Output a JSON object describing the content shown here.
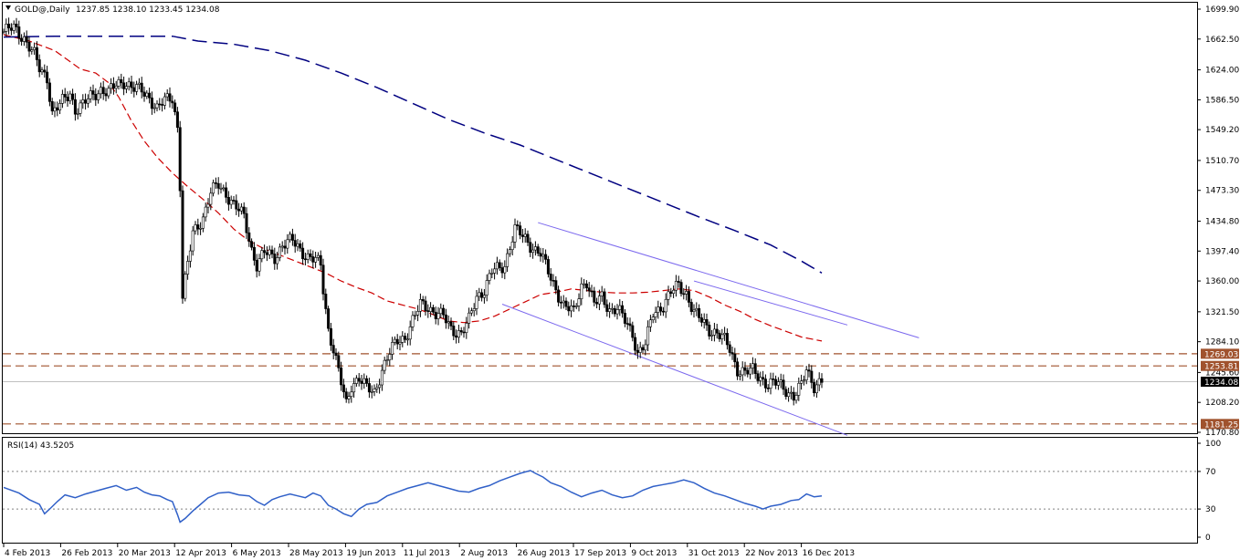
{
  "window": {
    "symbol_header": "GOLD@,Daily",
    "ohlc_header": "1237.85 1238.10 1233.45 1234.08",
    "indicator_header": "RSI(14) 43.5205"
  },
  "colors": {
    "background": "#ffffff",
    "candle": "#000000",
    "ma_short": "#cc0000",
    "ma_long": "#000080",
    "channel": "#7b68ee",
    "level": "#a0522d",
    "rsi": "#3060c8",
    "current_price_tag": "#000000"
  },
  "chart_data": [
    {
      "type": "candlestick",
      "symbol": "GOLD@",
      "timeframe": "Daily",
      "last_ohlc": {
        "open": 1237.85,
        "high": 1238.1,
        "low": 1233.45,
        "close": 1234.08
      },
      "ylim": [
        1170.8,
        1699.9
      ],
      "y_ticks": [
        "1699.90",
        "1662.50",
        "1624.00",
        "1586.50",
        "1549.20",
        "1510.70",
        "1473.30",
        "1434.80",
        "1397.40",
        "1360.00",
        "1321.50",
        "1284.10",
        "1245.60",
        "1208.20",
        "1170.80"
      ],
      "x_ticks": [
        "4 Feb 2013",
        "26 Feb 2013",
        "20 Mar 2013",
        "12 Apr 2013",
        "6 May 2013",
        "28 May 2013",
        "19 Jun 2013",
        "11 Jul 2013",
        "2 Aug 2013",
        "26 Aug 2013",
        "17 Sep 2013",
        "9 Oct 2013",
        "31 Oct 2013",
        "22 Nov 2013",
        "16 Dec 2013"
      ],
      "close_path": [
        [
          0,
          1672
        ],
        [
          4,
          1676
        ],
        [
          8,
          1664
        ],
        [
          12,
          1642
        ],
        [
          14,
          1625
        ],
        [
          17,
          1615
        ],
        [
          19,
          1570
        ],
        [
          22,
          1580
        ],
        [
          26,
          1595
        ],
        [
          28,
          1575
        ],
        [
          31,
          1580
        ],
        [
          34,
          1590
        ],
        [
          38,
          1600
        ],
        [
          41,
          1595
        ],
        [
          44,
          1605
        ],
        [
          47,
          1610
        ],
        [
          51,
          1600
        ],
        [
          54,
          1598
        ],
        [
          57,
          1590
        ],
        [
          60,
          1575
        ],
        [
          63,
          1585
        ],
        [
          66,
          1590
        ],
        [
          68,
          1552
        ],
        [
          69,
          1480
        ],
        [
          70,
          1340
        ],
        [
          72,
          1380
        ],
        [
          74,
          1420
        ],
        [
          78,
          1440
        ],
        [
          81,
          1470
        ],
        [
          84,
          1480
        ],
        [
          87,
          1470
        ],
        [
          90,
          1455
        ],
        [
          94,
          1440
        ],
        [
          97,
          1400
        ],
        [
          99,
          1380
        ],
        [
          102,
          1395
        ],
        [
          106,
          1390
        ],
        [
          109,
          1405
        ],
        [
          113,
          1410
        ],
        [
          116,
          1400
        ],
        [
          119,
          1390
        ],
        [
          122,
          1385
        ],
        [
          124,
          1380
        ],
        [
          125,
          1350
        ],
        [
          127,
          1300
        ],
        [
          129,
          1275
        ],
        [
          132,
          1232
        ],
        [
          134,
          1205
        ],
        [
          136,
          1230
        ],
        [
          139,
          1240
        ],
        [
          142,
          1225
        ],
        [
          145,
          1220
        ],
        [
          148,
          1250
        ],
        [
          151,
          1270
        ],
        [
          154,
          1285
        ],
        [
          157,
          1290
        ],
        [
          160,
          1310
        ],
        [
          163,
          1330
        ],
        [
          166,
          1328
        ],
        [
          169,
          1320
        ],
        [
          172,
          1315
        ],
        [
          175,
          1300
        ],
        [
          179,
          1295
        ],
        [
          182,
          1310
        ],
        [
          185,
          1340
        ],
        [
          188,
          1350
        ],
        [
          191,
          1372
        ],
        [
          194,
          1375
        ],
        [
          196,
          1380
        ],
        [
          198,
          1405
        ],
        [
          200,
          1425
        ],
        [
          203,
          1415
        ],
        [
          206,
          1405
        ],
        [
          210,
          1395
        ],
        [
          213,
          1370
        ],
        [
          216,
          1350
        ],
        [
          219,
          1330
        ],
        [
          223,
          1320
        ],
        [
          226,
          1355
        ],
        [
          228,
          1360
        ],
        [
          231,
          1330
        ],
        [
          234,
          1340
        ],
        [
          237,
          1325
        ],
        [
          240,
          1325
        ],
        [
          243,
          1310
        ],
        [
          246,
          1295
        ],
        [
          248,
          1270
        ],
        [
          251,
          1280
        ],
        [
          254,
          1320
        ],
        [
          258,
          1330
        ],
        [
          261,
          1345
        ],
        [
          264,
          1355
        ],
        [
          267,
          1345
        ],
        [
          270,
          1320
        ],
        [
          273,
          1310
        ],
        [
          276,
          1300
        ],
        [
          279,
          1295
        ],
        [
          282,
          1285
        ],
        [
          284,
          1275
        ],
        [
          287,
          1250
        ],
        [
          290,
          1245
        ],
        [
          293,
          1248
        ],
        [
          296,
          1240
        ],
        [
          299,
          1230
        ],
        [
          303,
          1232
        ],
        [
          306,
          1225
        ],
        [
          309,
          1215
        ],
        [
          312,
          1228
        ],
        [
          314,
          1250
        ],
        [
          317,
          1230
        ],
        [
          320,
          1234
        ]
      ],
      "series": [
        {
          "values": [
            [
              0,
              1668
            ],
            [
              10,
              1660
            ],
            [
              20,
              1648
            ],
            [
              30,
              1625
            ],
            [
              36,
              1620
            ],
            [
              41,
              1608
            ],
            [
              45,
              1590
            ],
            [
              50,
              1560
            ],
            [
              55,
              1535
            ],
            [
              60,
              1515
            ],
            [
              66,
              1495
            ],
            [
              72,
              1478
            ],
            [
              78,
              1462
            ],
            [
              84,
              1445
            ],
            [
              90,
              1425
            ],
            [
              96,
              1410
            ],
            [
              102,
              1400
            ],
            [
              110,
              1390
            ],
            [
              118,
              1380
            ],
            [
              126,
              1370
            ],
            [
              132,
              1360
            ],
            [
              138,
              1352
            ],
            [
              144,
              1345
            ],
            [
              150,
              1335
            ],
            [
              156,
              1330
            ],
            [
              162,
              1325
            ],
            [
              168,
              1318
            ],
            [
              174,
              1310
            ],
            [
              180,
              1308
            ],
            [
              186,
              1310
            ],
            [
              192,
              1316
            ],
            [
              198,
              1325
            ],
            [
              204,
              1334
            ],
            [
              210,
              1343
            ],
            [
              216,
              1346
            ],
            [
              222,
              1350
            ],
            [
              228,
              1348
            ],
            [
              234,
              1346
            ],
            [
              240,
              1345
            ],
            [
              246,
              1345
            ],
            [
              252,
              1346
            ],
            [
              258,
              1348
            ],
            [
              264,
              1350
            ],
            [
              270,
              1348
            ],
            [
              276,
              1340
            ],
            [
              282,
              1330
            ],
            [
              288,
              1322
            ],
            [
              294,
              1312
            ],
            [
              300,
              1304
            ],
            [
              306,
              1297
            ],
            [
              312,
              1290
            ],
            [
              320,
              1285
            ]
          ]
        },
        {
          "values": [
            [
              0,
              1665
            ],
            [
              20,
              1666
            ],
            [
              40,
              1666
            ],
            [
              66,
              1666
            ],
            [
              76,
              1660
            ],
            [
              90,
              1656
            ],
            [
              104,
              1648
            ],
            [
              118,
              1636
            ],
            [
              132,
              1620
            ],
            [
              146,
              1602
            ],
            [
              160,
              1582
            ],
            [
              174,
              1562
            ],
            [
              188,
              1545
            ],
            [
              202,
              1530
            ],
            [
              216,
              1512
            ],
            [
              230,
              1494
            ],
            [
              244,
              1476
            ],
            [
              258,
              1458
            ],
            [
              272,
              1440
            ],
            [
              286,
              1423
            ],
            [
              300,
              1405
            ],
            [
              312,
              1385
            ],
            [
              320,
              1370
            ]
          ]
        }
      ],
      "channel_lines": [
        {
          "from": [
            209,
            1433
          ],
          "to": [
            358,
            1289
          ]
        },
        {
          "from": [
            195,
            1331
          ],
          "to": [
            330,
            1167
          ]
        },
        {
          "from": [
            270,
            1360
          ],
          "to": [
            330,
            1305
          ]
        }
      ],
      "levels": [
        {
          "value": 1269.03,
          "label": "1269.03"
        },
        {
          "value": 1253.81,
          "label": "1253.81"
        },
        {
          "value": 1181.25,
          "label": "1181.25"
        }
      ],
      "current_price": {
        "value": 1234.08,
        "label": "1234.08"
      }
    },
    {
      "type": "line",
      "name": "RSI(14)",
      "last_value": 43.5205,
      "ylim": [
        0,
        100
      ],
      "y_ticks": [
        "100",
        "70",
        "30",
        "0"
      ],
      "levels": [
        70,
        30
      ],
      "values": [
        [
          0,
          53
        ],
        [
          6,
          47
        ],
        [
          10,
          40
        ],
        [
          14,
          35
        ],
        [
          16,
          25
        ],
        [
          18,
          30
        ],
        [
          21,
          38
        ],
        [
          24,
          45
        ],
        [
          28,
          42
        ],
        [
          32,
          46
        ],
        [
          36,
          49
        ],
        [
          40,
          52
        ],
        [
          44,
          55
        ],
        [
          48,
          50
        ],
        [
          52,
          53
        ],
        [
          55,
          48
        ],
        [
          58,
          45
        ],
        [
          61,
          44
        ],
        [
          64,
          40
        ],
        [
          66,
          38
        ],
        [
          68,
          24
        ],
        [
          69,
          16
        ],
        [
          71,
          20
        ],
        [
          74,
          28
        ],
        [
          77,
          35
        ],
        [
          80,
          42
        ],
        [
          84,
          47
        ],
        [
          88,
          48
        ],
        [
          92,
          45
        ],
        [
          96,
          44
        ],
        [
          99,
          38
        ],
        [
          102,
          34
        ],
        [
          105,
          40
        ],
        [
          108,
          43
        ],
        [
          112,
          46
        ],
        [
          115,
          44
        ],
        [
          118,
          42
        ],
        [
          121,
          47
        ],
        [
          124,
          44
        ],
        [
          127,
          34
        ],
        [
          130,
          30
        ],
        [
          133,
          25
        ],
        [
          136,
          22
        ],
        [
          139,
          30
        ],
        [
          142,
          35
        ],
        [
          146,
          37
        ],
        [
          150,
          44
        ],
        [
          154,
          48
        ],
        [
          158,
          52
        ],
        [
          162,
          55
        ],
        [
          166,
          58
        ],
        [
          170,
          55
        ],
        [
          174,
          52
        ],
        [
          178,
          49
        ],
        [
          182,
          48
        ],
        [
          186,
          52
        ],
        [
          190,
          55
        ],
        [
          194,
          60
        ],
        [
          198,
          64
        ],
        [
          202,
          68
        ],
        [
          206,
          71
        ],
        [
          208,
          68
        ],
        [
          211,
          64
        ],
        [
          214,
          58
        ],
        [
          218,
          54
        ],
        [
          222,
          48
        ],
        [
          226,
          43
        ],
        [
          230,
          47
        ],
        [
          234,
          50
        ],
        [
          238,
          45
        ],
        [
          242,
          42
        ],
        [
          246,
          44
        ],
        [
          250,
          50
        ],
        [
          254,
          54
        ],
        [
          258,
          56
        ],
        [
          262,
          58
        ],
        [
          266,
          61
        ],
        [
          270,
          58
        ],
        [
          274,
          52
        ],
        [
          278,
          47
        ],
        [
          282,
          44
        ],
        [
          286,
          40
        ],
        [
          290,
          36
        ],
        [
          294,
          33
        ],
        [
          297,
          30
        ],
        [
          300,
          33
        ],
        [
          304,
          35
        ],
        [
          308,
          39
        ],
        [
          311,
          40
        ],
        [
          314,
          46
        ],
        [
          317,
          43
        ],
        [
          320,
          44
        ]
      ]
    }
  ]
}
